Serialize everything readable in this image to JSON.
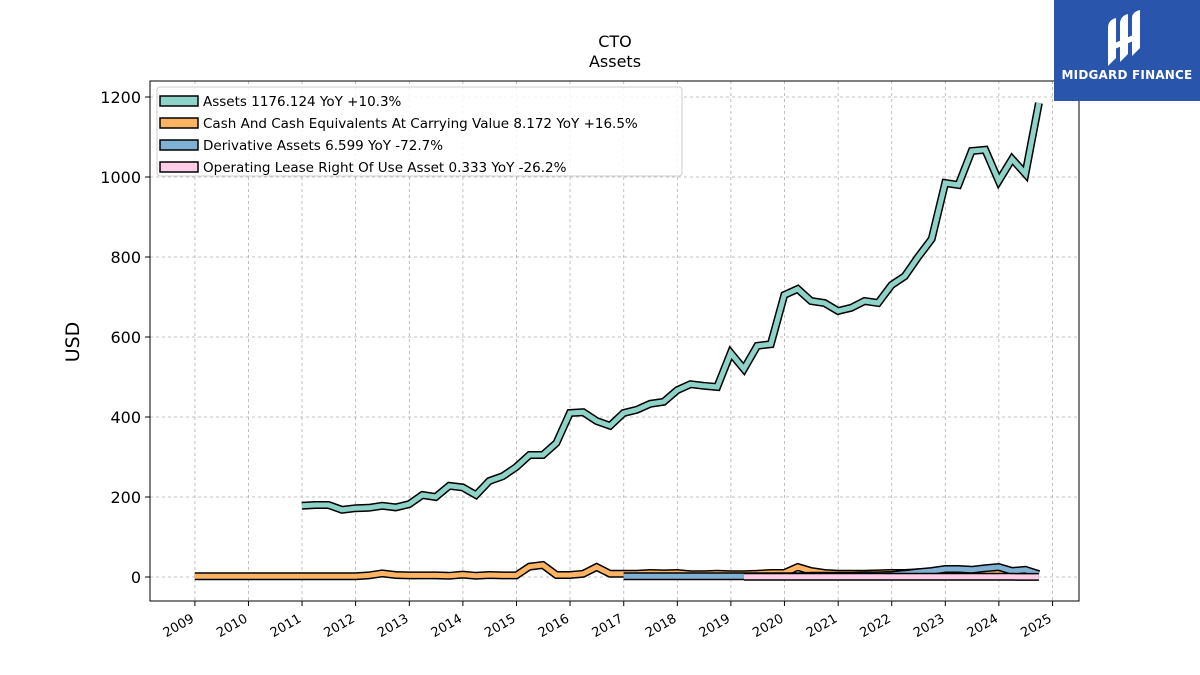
{
  "brand": {
    "name": "MIDGARD FINANCE",
    "color": "#2a55ad"
  },
  "chart_data": {
    "type": "line",
    "title": "CTO",
    "subtitle": "Assets",
    "xlabel": "",
    "ylabel": "USD",
    "xlim": [
      "2008-03-01",
      "2025-06-30"
    ],
    "ylim": [
      -60,
      1240
    ],
    "yticks": [
      0,
      200,
      400,
      600,
      800,
      1000,
      1200
    ],
    "xticks": [
      "2009",
      "2010",
      "2011",
      "2012",
      "2013",
      "2014",
      "2015",
      "2016",
      "2017",
      "2018",
      "2019",
      "2020",
      "2021",
      "2022",
      "2023",
      "2024",
      "2025"
    ],
    "grid": true,
    "legend_position": "top-left",
    "series": [
      {
        "name": "Assets",
        "legend_label": "Assets  1176.124 YoY +10.3%",
        "color": "#8dd3c7",
        "x": [
          "2010-12-31",
          "2011-03-31",
          "2011-06-30",
          "2011-09-30",
          "2011-12-31",
          "2012-03-31",
          "2012-06-30",
          "2012-09-30",
          "2012-12-31",
          "2013-03-31",
          "2013-06-30",
          "2013-09-30",
          "2013-12-31",
          "2014-03-31",
          "2014-06-30",
          "2014-09-30",
          "2014-12-31",
          "2015-03-31",
          "2015-06-30",
          "2015-09-30",
          "2015-12-31",
          "2016-03-31",
          "2016-06-30",
          "2016-09-30",
          "2016-12-31",
          "2017-03-31",
          "2017-06-30",
          "2017-09-30",
          "2017-12-31",
          "2018-03-31",
          "2018-06-30",
          "2018-09-30",
          "2018-12-31",
          "2019-03-31",
          "2019-06-30",
          "2019-09-30",
          "2019-12-31",
          "2020-03-31",
          "2020-06-30",
          "2020-09-30",
          "2020-12-31",
          "2021-03-31",
          "2021-06-30",
          "2021-09-30",
          "2021-12-31",
          "2022-03-31",
          "2022-06-30",
          "2022-09-30",
          "2022-12-31",
          "2023-03-31",
          "2023-06-30",
          "2023-09-30",
          "2023-12-31",
          "2024-03-31",
          "2024-06-30",
          "2024-09-30"
        ],
        "values": [
          178,
          180,
          180,
          168,
          172,
          173,
          178,
          174,
          182,
          205,
          200,
          228,
          224,
          205,
          240,
          252,
          275,
          305,
          305,
          335,
          410,
          412,
          390,
          378,
          410,
          418,
          433,
          438,
          467,
          482,
          478,
          475,
          560,
          520,
          578,
          582,
          705,
          720,
          690,
          685,
          665,
          673,
          690,
          685,
          730,
          752,
          800,
          845,
          985,
          980,
          1065,
          1068,
          990,
          1045,
          1008,
          1185
        ]
      },
      {
        "name": "Cash And Cash Equivalents At Carrying Value",
        "legend_label": "Cash And Cash Equivalents At Carrying Value  8.172 YoY +16.5%",
        "color": "#fdb462",
        "x": [
          "2008-12-31",
          "2009-12-31",
          "2010-12-31",
          "2011-06-30",
          "2011-09-30",
          "2011-12-31",
          "2012-03-31",
          "2012-06-30",
          "2012-09-30",
          "2012-12-31",
          "2013-03-31",
          "2013-06-30",
          "2013-09-30",
          "2013-12-31",
          "2014-03-31",
          "2014-06-30",
          "2014-09-30",
          "2014-12-31",
          "2015-03-31",
          "2015-06-30",
          "2015-09-30",
          "2015-12-31",
          "2016-03-31",
          "2016-06-30",
          "2016-09-30",
          "2016-12-31",
          "2017-03-31",
          "2017-06-30",
          "2017-09-30",
          "2017-12-31",
          "2018-03-31",
          "2018-06-30",
          "2018-09-30",
          "2018-12-31",
          "2019-03-31",
          "2019-06-30",
          "2019-09-30",
          "2019-12-31",
          "2020-03-31",
          "2020-06-30",
          "2020-09-30",
          "2020-12-31",
          "2021-03-31",
          "2021-06-30",
          "2021-09-30",
          "2021-12-31",
          "2022-03-31",
          "2022-06-30",
          "2022-09-30",
          "2022-12-31",
          "2023-03-31",
          "2023-06-30",
          "2023-09-30",
          "2023-12-31",
          "2024-03-31",
          "2024-06-30",
          "2024-09-30"
        ],
        "values": [
          2,
          2,
          2,
          2,
          2,
          2,
          4,
          9,
          5,
          4,
          4,
          4,
          3,
          6,
          3,
          5,
          4,
          4,
          26,
          30,
          5,
          5,
          8,
          25,
          8,
          8,
          8,
          10,
          9,
          10,
          7,
          7,
          8,
          7,
          7,
          8,
          10,
          10,
          25,
          15,
          10,
          8,
          8,
          8,
          9,
          10,
          10,
          12,
          10,
          12,
          12,
          12,
          10,
          10,
          10,
          10,
          8
        ]
      },
      {
        "name": "Derivative Assets",
        "legend_label": "Derivative Assets  6.599 YoY -72.7%",
        "color": "#80b1d3",
        "x": [
          "2016-12-31",
          "2017-06-30",
          "2017-12-31",
          "2018-06-30",
          "2018-12-31",
          "2019-03-31",
          "2019-06-30",
          "2019-09-30",
          "2019-12-31",
          "2020-03-31",
          "2020-06-30",
          "2020-09-30",
          "2020-12-31",
          "2021-03-31",
          "2021-06-30",
          "2021-09-30",
          "2021-12-31",
          "2022-03-31",
          "2022-06-30",
          "2022-09-30",
          "2022-12-31",
          "2023-03-31",
          "2023-06-30",
          "2023-09-30",
          "2023-12-31",
          "2024-03-31",
          "2024-06-30",
          "2024-09-30"
        ],
        "values": [
          2,
          2,
          2,
          2,
          2,
          2,
          2,
          2,
          2,
          2,
          3,
          3,
          3,
          3,
          4,
          4,
          5,
          8,
          12,
          15,
          20,
          20,
          18,
          22,
          25,
          15,
          18,
          7
        ]
      },
      {
        "name": "Operating Lease Right Of Use Asset",
        "legend_label": "Operating Lease Right Of Use Asset  0.333 YoY -26.2%",
        "color": "#fccde5",
        "x": [
          "2019-03-31",
          "2020-03-31",
          "2021-03-31",
          "2022-03-31",
          "2023-03-31",
          "2024-03-31",
          "2024-09-30"
        ],
        "values": [
          0.5,
          0.5,
          0.5,
          0.5,
          0.45,
          0.45,
          0.33
        ]
      }
    ]
  }
}
